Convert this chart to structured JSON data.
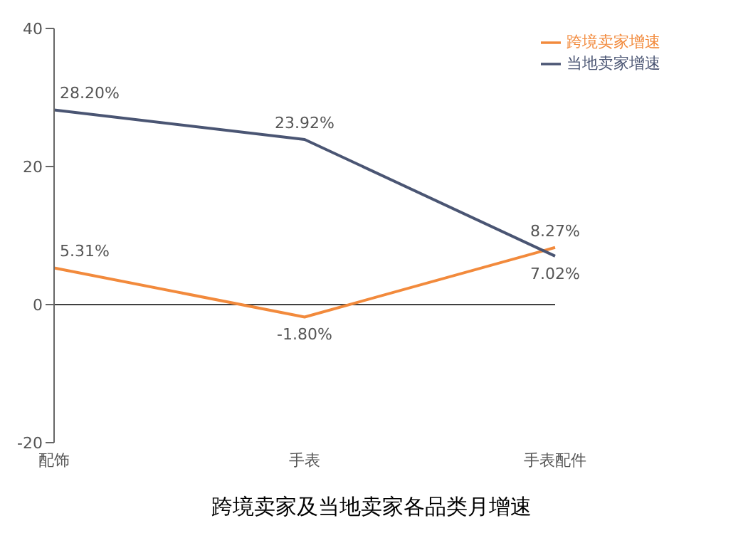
{
  "chart_data": {
    "type": "line",
    "title": "跨境卖家及当地卖家各品类月增速",
    "categories": [
      "配饰",
      "手表",
      "手表配件"
    ],
    "series": [
      {
        "name": "跨境卖家增速",
        "color": "#f28a3c",
        "values": [
          5.31,
          -1.8,
          8.27
        ],
        "value_labels": [
          "5.31%",
          "-1.80%",
          "8.27%"
        ]
      },
      {
        "name": "当地卖家增速",
        "color": "#4a5573",
        "values": [
          28.2,
          23.92,
          7.02
        ],
        "value_labels": [
          "28.20%",
          "23.92%",
          "7.02%"
        ]
      }
    ],
    "ylim": [
      -20,
      40
    ],
    "yticks": [
      -20,
      0,
      20,
      40
    ],
    "grid": false,
    "legend": "top right",
    "marker": "none",
    "ref_lines": [
      {
        "axis": "y",
        "value": 0,
        "color": "#404040"
      }
    ]
  }
}
